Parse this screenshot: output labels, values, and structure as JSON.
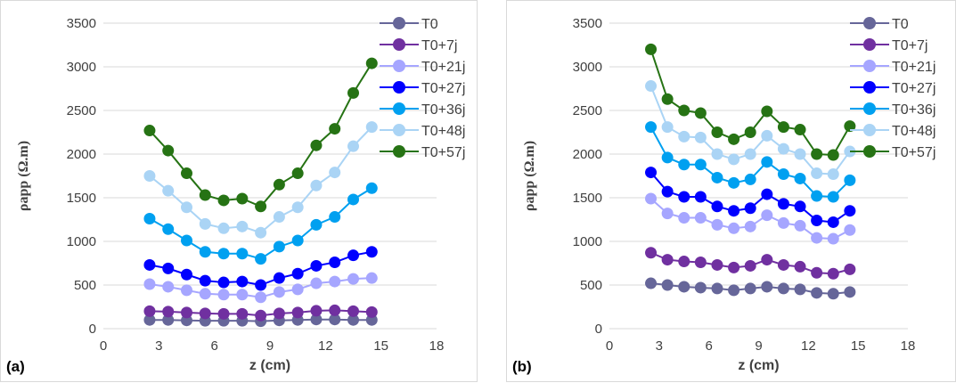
{
  "chart_data": [
    {
      "type": "line",
      "panel_label": "(a)",
      "xlabel": "z (cm)",
      "ylabel": "ρapp (Ω.m)",
      "xlim": [
        0,
        18
      ],
      "ylim": [
        0,
        3500
      ],
      "xticks": [
        "0",
        "3",
        "6",
        "9",
        "12",
        "15",
        "18"
      ],
      "yticks": [
        "0",
        "500",
        "1000",
        "1500",
        "2000",
        "2500",
        "3000",
        "3500"
      ],
      "grid": "horizontal",
      "legend_position": "top-right",
      "x": [
        2.5,
        3.5,
        4.5,
        5.5,
        6.5,
        7.5,
        8.5,
        9.5,
        10.5,
        11.5,
        12.5,
        13.5,
        14.5
      ],
      "series": [
        {
          "name": "T0",
          "color": "#666699",
          "values": [
            100,
            100,
            95,
            90,
            90,
            90,
            85,
            95,
            100,
            105,
            105,
            100,
            100
          ]
        },
        {
          "name": "T0+7j",
          "color": "#7030a0",
          "values": [
            200,
            195,
            185,
            175,
            170,
            170,
            150,
            175,
            185,
            205,
            210,
            200,
            190
          ]
        },
        {
          "name": "T0+21j",
          "color": "#a6a6ff",
          "values": [
            510,
            480,
            440,
            400,
            390,
            390,
            360,
            420,
            450,
            520,
            540,
            570,
            580
          ]
        },
        {
          "name": "T0+27j",
          "color": "#0000ff",
          "values": [
            730,
            690,
            620,
            550,
            530,
            540,
            500,
            580,
            630,
            720,
            760,
            840,
            880
          ]
        },
        {
          "name": "T0+36j",
          "color": "#00a0f0",
          "values": [
            1260,
            1140,
            1010,
            880,
            860,
            860,
            800,
            940,
            1010,
            1190,
            1280,
            1480,
            1610
          ]
        },
        {
          "name": "T0+48j",
          "color": "#aad4f5",
          "values": [
            1750,
            1580,
            1390,
            1200,
            1150,
            1170,
            1100,
            1280,
            1390,
            1640,
            1790,
            2090,
            2310
          ]
        },
        {
          "name": "T0+57j",
          "color": "#267314",
          "values": [
            2270,
            2040,
            1780,
            1530,
            1470,
            1490,
            1400,
            1650,
            1780,
            2100,
            2290,
            2700,
            3040
          ]
        }
      ]
    },
    {
      "type": "line",
      "panel_label": "(b)",
      "xlabel": "z (cm)",
      "ylabel": "ρapp (Ω.m)",
      "xlim": [
        0,
        18
      ],
      "ylim": [
        0,
        3500
      ],
      "xticks": [
        "0",
        "3",
        "6",
        "9",
        "12",
        "15",
        "18"
      ],
      "yticks": [
        "0",
        "500",
        "1000",
        "1500",
        "2000",
        "2500",
        "3000",
        "3500"
      ],
      "grid": "horizontal",
      "legend_position": "top-right",
      "x": [
        2.5,
        3.5,
        4.5,
        5.5,
        6.5,
        7.5,
        8.5,
        9.5,
        10.5,
        11.5,
        12.5,
        13.5,
        14.5
      ],
      "series": [
        {
          "name": "T0",
          "color": "#666699",
          "values": [
            520,
            500,
            480,
            470,
            460,
            440,
            460,
            480,
            460,
            450,
            410,
            400,
            420
          ]
        },
        {
          "name": "T0+7j",
          "color": "#7030a0",
          "values": [
            870,
            790,
            770,
            760,
            730,
            700,
            720,
            790,
            730,
            710,
            640,
            630,
            680
          ]
        },
        {
          "name": "T0+21j",
          "color": "#a6a6ff",
          "values": [
            1490,
            1320,
            1270,
            1270,
            1190,
            1150,
            1170,
            1300,
            1210,
            1180,
            1040,
            1030,
            1130
          ]
        },
        {
          "name": "T0+27j",
          "color": "#0000ff",
          "values": [
            1790,
            1570,
            1510,
            1510,
            1400,
            1350,
            1380,
            1540,
            1430,
            1400,
            1240,
            1220,
            1350
          ]
        },
        {
          "name": "T0+36j",
          "color": "#00a0f0",
          "values": [
            2310,
            1960,
            1880,
            1880,
            1730,
            1670,
            1710,
            1910,
            1770,
            1720,
            1520,
            1510,
            1700
          ]
        },
        {
          "name": "T0+48j",
          "color": "#aad4f5",
          "values": [
            2780,
            2310,
            2200,
            2190,
            2000,
            1940,
            2000,
            2210,
            2060,
            2000,
            1780,
            1770,
            2030
          ]
        },
        {
          "name": "T0+57j",
          "color": "#267314",
          "values": [
            3200,
            2630,
            2500,
            2470,
            2250,
            2170,
            2250,
            2490,
            2310,
            2280,
            2000,
            1990,
            2320
          ]
        }
      ]
    }
  ]
}
